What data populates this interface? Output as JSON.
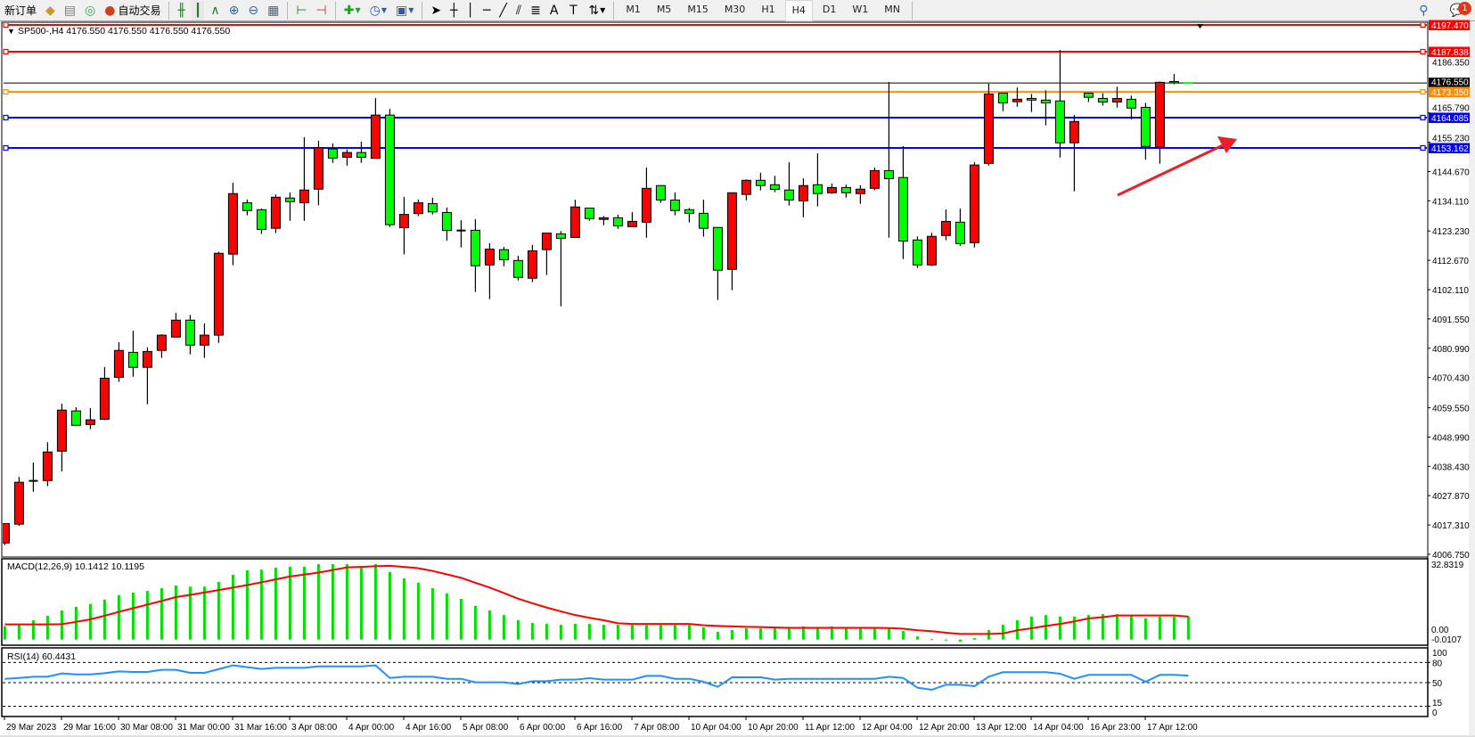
{
  "toolbar": {
    "new_order": "新订单",
    "auto_trading": "自动交易",
    "timeframes": [
      "M1",
      "M5",
      "M15",
      "M30",
      "H1",
      "H4",
      "D1",
      "W1",
      "MN"
    ],
    "active_timeframe": "H4",
    "notification_count": "1",
    "icons": [
      "market-watch-icon",
      "navigator-icon",
      "signals-icon",
      "auto-trading-icon",
      "bar-chart-icon",
      "candlestick-icon",
      "line-chart-icon",
      "zoom-in-icon",
      "zoom-out-icon",
      "tile-windows-icon",
      "chart-shift-icon",
      "autoscroll-icon",
      "indicators-icon",
      "periods-icon",
      "templates-icon",
      "cursor-icon",
      "crosshair-icon",
      "vertical-line-icon",
      "horizontal-line-icon",
      "trendline-icon",
      "equidistant-channel-icon",
      "fibonacci-icon",
      "text-icon",
      "text-label-icon",
      "arrows-icon",
      "search-icon",
      "chat-icon"
    ]
  },
  "chart": {
    "header": "SP500-,H4  4176.550 4176.550 4176.550 4176.550",
    "colors": {
      "bull": "#ff0000",
      "bear": "#00ff00",
      "outline": "#000000",
      "resistance": "#ff0000",
      "orange_level": "#ff8c00",
      "support": "#0000ff",
      "arrow": "#e8202a"
    },
    "levels": [
      {
        "price": 4197.47,
        "label": "4197.470",
        "color": "#ff0000"
      },
      {
        "price": 4187.838,
        "label": "4187.838",
        "color": "#ff0000"
      },
      {
        "price": 4173.35,
        "label": "4173.350",
        "color": "#ff8c00"
      },
      {
        "price": 4164.085,
        "label": "4164.085",
        "color": "#0000ff"
      },
      {
        "price": 4153.162,
        "label": "4153.162",
        "color": "#0000ff"
      }
    ],
    "bid": {
      "price": 4176.55,
      "label": "4176.550"
    },
    "price_axis": [
      "4186.350",
      "4165.790",
      "4155.230",
      "4144.670",
      "4134.110",
      "4123.230",
      "4112.670",
      "4102.110",
      "4091.550",
      "4080.990",
      "4070.430",
      "4059.550",
      "4048.990",
      "4038.430",
      "4027.870",
      "4017.310",
      "4006.750"
    ],
    "time_axis": [
      "29 Mar 2023",
      "29 Mar 16:00",
      "30 Mar 08:00",
      "31 Mar 00:00",
      "31 Mar 16:00",
      "3 Apr 08:00",
      "4 Apr 00:00",
      "4 Apr 16:00",
      "5 Apr 08:00",
      "6 Apr 00:00",
      "6 Apr 16:00",
      "7 Apr 08:00",
      "10 Apr 04:00",
      "10 Apr 20:00",
      "11 Apr 12:00",
      "12 Apr 04:00",
      "12 Apr 20:00",
      "13 Apr 12:00",
      "14 Apr 04:00",
      "16 Apr 23:00",
      "17 Apr 12:00"
    ],
    "ohlc": [
      [
        4010.8,
        4017.8,
        4010.0,
        4017.8
      ],
      [
        4017.6,
        4034.6,
        4017.0,
        4032.7
      ],
      [
        4033.2,
        4039.8,
        4029.3,
        4033.2
      ],
      [
        4033.3,
        4047.1,
        4031.3,
        4043.6
      ],
      [
        4043.9,
        4061.0,
        4036.6,
        4058.7
      ],
      [
        4058.4,
        4059.7,
        4053.2,
        4053.2
      ],
      [
        4053.5,
        4059.4,
        4051.8,
        4055.2
      ],
      [
        4055.4,
        4074.2,
        4055.1,
        4070.2
      ],
      [
        4070.5,
        4083.1,
        4068.9,
        4080.2
      ],
      [
        4079.5,
        4087.3,
        4070.7,
        4074.1
      ],
      [
        4074.1,
        4081.3,
        4060.8,
        4079.8
      ],
      [
        4080.2,
        4086.0,
        4077.5,
        4085.7
      ],
      [
        4085.0,
        4093.7,
        4085.0,
        4091.1
      ],
      [
        4091.1,
        4093.0,
        4078.8,
        4082.1
      ],
      [
        4082.1,
        4089.9,
        4077.5,
        4085.7
      ],
      [
        4085.7,
        4115.7,
        4082.9,
        4115.2
      ],
      [
        4114.9,
        4140.6,
        4110.9,
        4136.7
      ],
      [
        4133.4,
        4134.6,
        4128.9,
        4130.6
      ],
      [
        4130.9,
        4131.3,
        4122.2,
        4123.8
      ],
      [
        4124.2,
        4136.4,
        4122.5,
        4135.4
      ],
      [
        4135.1,
        4137.1,
        4126.9,
        4133.8
      ],
      [
        4133.4,
        4157.0,
        4126.9,
        4138.0
      ],
      [
        4138.3,
        4155.8,
        4132.5,
        4153.2
      ],
      [
        4152.8,
        4154.8,
        4147.8,
        4149.5
      ],
      [
        4149.8,
        4152.6,
        4146.8,
        4151.5
      ],
      [
        4151.5,
        4155.4,
        4147.8,
        4149.8
      ],
      [
        4149.4,
        4171.1,
        4149.4,
        4165.0
      ],
      [
        4165.0,
        4167.2,
        4124.7,
        4125.5
      ],
      [
        4124.4,
        4135.5,
        4114.8,
        4129.2
      ],
      [
        4129.5,
        4134.6,
        4128.6,
        4133.4
      ],
      [
        4133.1,
        4135.2,
        4129.2,
        4130.1
      ],
      [
        4129.9,
        4131.7,
        4119.7,
        4123.4
      ],
      [
        4123.4,
        4127.1,
        4117.3,
        4123.4
      ],
      [
        4123.5,
        4127.5,
        4101.3,
        4110.7
      ],
      [
        4111.0,
        4118.8,
        4098.7,
        4116.7
      ],
      [
        4116.5,
        4117.5,
        4110.5,
        4112.9
      ],
      [
        4112.6,
        4114.3,
        4105.4,
        4106.5
      ],
      [
        4106.2,
        4118.2,
        4104.8,
        4116.1
      ],
      [
        4116.5,
        4122.5,
        4107.4,
        4122.5
      ],
      [
        4122.2,
        4123.2,
        4096.1,
        4120.6
      ],
      [
        4120.9,
        4134.5,
        4120.9,
        4131.9
      ],
      [
        4131.5,
        4131.5,
        4126.9,
        4127.7
      ],
      [
        4127.4,
        4128.6,
        4125.3,
        4128.0
      ],
      [
        4128.0,
        4129.1,
        4124.0,
        4125.1
      ],
      [
        4124.8,
        4130.0,
        4124.8,
        4126.7
      ],
      [
        4126.4,
        4146.1,
        4120.8,
        4138.6
      ],
      [
        4139.6,
        4139.6,
        4133.4,
        4134.4
      ],
      [
        4134.4,
        4137.1,
        4128.9,
        4130.6
      ],
      [
        4130.9,
        4131.5,
        4126.3,
        4129.6
      ],
      [
        4129.6,
        4134.5,
        4121.2,
        4124.2
      ],
      [
        4124.5,
        4124.5,
        4098.4,
        4109.1
      ],
      [
        4109.4,
        4137.0,
        4101.9,
        4137.0
      ],
      [
        4136.4,
        4141.8,
        4134.3,
        4141.5
      ],
      [
        4141.5,
        4144.2,
        4137.9,
        4139.6
      ],
      [
        4139.9,
        4143.1,
        4137.2,
        4138.2
      ],
      [
        4138.0,
        4148.0,
        4132.4,
        4134.4
      ],
      [
        4134.1,
        4142.2,
        4128.2,
        4139.6
      ],
      [
        4139.9,
        4151.2,
        4132.1,
        4136.7
      ],
      [
        4137.0,
        4140.3,
        4136.6,
        4138.9
      ],
      [
        4138.9,
        4139.9,
        4135.3,
        4137.0
      ],
      [
        4136.7,
        4139.7,
        4133.0,
        4138.3
      ],
      [
        4138.6,
        4146.1,
        4137.9,
        4145.0
      ],
      [
        4145.0,
        4176.9,
        4120.8,
        4142.1
      ],
      [
        4142.5,
        4153.8,
        4113.1,
        4119.6
      ],
      [
        4120.0,
        4121.3,
        4109.9,
        4111.0
      ],
      [
        4111.0,
        4122.6,
        4110.6,
        4121.3
      ],
      [
        4121.6,
        4131.0,
        4119.9,
        4126.7
      ],
      [
        4126.4,
        4131.3,
        4117.9,
        4118.7
      ],
      [
        4119.0,
        4148.0,
        4117.3,
        4147.0
      ],
      [
        4147.6,
        4176.3,
        4146.8,
        4172.6
      ],
      [
        4172.9,
        4172.9,
        4166.4,
        4169.4
      ],
      [
        4169.8,
        4174.9,
        4168.0,
        4170.7
      ],
      [
        4171.0,
        4172.6,
        4166.1,
        4170.4
      ],
      [
        4170.4,
        4173.9,
        4161.3,
        4169.4
      ],
      [
        4170.1,
        4188.5,
        4149.7,
        4155.0
      ],
      [
        4155.0,
        4165.0,
        4137.5,
        4162.7
      ],
      [
        4172.9,
        4172.9,
        4169.7,
        4171.4
      ],
      [
        4171.0,
        4172.9,
        4168.4,
        4169.7
      ],
      [
        4169.7,
        4175.2,
        4167.7,
        4171.0
      ],
      [
        4170.7,
        4172.0,
        4163.5,
        4167.5
      ],
      [
        4167.8,
        4169.4,
        4148.9,
        4153.7
      ],
      [
        4153.4,
        4177.1,
        4147.5,
        4176.8
      ],
      [
        4177.1,
        4179.8,
        4176.1,
        4176.6
      ],
      [
        4176.55,
        4176.55,
        4176.55,
        4176.55
      ]
    ]
  },
  "macd": {
    "label": "MACD(12,26,9) 10.1412 10.1195",
    "scale_top": "32.8319",
    "scale_bottom": "0.00",
    "scale_bottom2": "-0.0107",
    "max": 32.8319,
    "histogram": [
      5.9,
      6.9,
      8.5,
      10.5,
      12.8,
      14.4,
      15.6,
      17.6,
      19.5,
      20.7,
      21.4,
      22.6,
      23.8,
      23.3,
      23.3,
      25.4,
      28.5,
      30.5,
      30.8,
      31.6,
      32.0,
      32.0,
      33.2,
      33.2,
      33.2,
      32.0,
      33.2,
      29.7,
      26.9,
      25.0,
      22.6,
      20.3,
      17.9,
      14.8,
      12.8,
      10.8,
      8.5,
      7.3,
      6.9,
      6.5,
      6.9,
      6.9,
      6.5,
      6.5,
      6.5,
      6.5,
      6.5,
      6.5,
      6.5,
      5.4,
      3.4,
      4.2,
      5.0,
      5.0,
      5.0,
      5.0,
      5.8,
      5.0,
      5.8,
      5.0,
      5.0,
      5.0,
      5.0,
      3.8,
      1.4,
      0.2,
      -0.2,
      -1.0,
      0.7,
      4.2,
      6.5,
      8.5,
      10.1,
      10.8,
      10.1,
      10.1,
      10.8,
      11.2,
      11.2,
      10.8,
      9.3,
      10.1,
      10.1,
      10.14
    ],
    "signal": [
      6.7,
      6.7,
      6.7,
      6.7,
      6.8,
      7.8,
      8.9,
      10.5,
      12.2,
      13.8,
      15.4,
      17.0,
      18.7,
      19.7,
      20.7,
      21.8,
      22.9,
      24.0,
      25.2,
      26.5,
      27.8,
      28.6,
      29.5,
      30.6,
      31.8,
      32.0,
      32.3,
      32.5,
      32.0,
      31.4,
      30.2,
      28.7,
      27.2,
      25.0,
      22.9,
      20.5,
      18.0,
      16.0,
      14.1,
      12.4,
      10.8,
      9.6,
      8.5,
      7.2,
      6.9,
      6.9,
      6.9,
      6.9,
      6.9,
      6.3,
      6.0,
      5.8,
      5.6,
      5.5,
      5.3,
      5.2,
      5.2,
      5.2,
      5.2,
      5.2,
      5.2,
      5.2,
      5.1,
      4.8,
      4.1,
      3.7,
      3.0,
      2.5,
      2.5,
      2.5,
      2.7,
      4.1,
      5.0,
      6.0,
      6.9,
      8.0,
      9.3,
      9.9,
      10.6,
      10.6,
      10.6,
      10.6,
      10.6,
      10.12
    ],
    "colors": {
      "histogram": "#00e000",
      "signal": "#ff0000"
    }
  },
  "rsi": {
    "label": "RSI(14) 60.4431",
    "levels": [
      {
        "value": 100,
        "label": "100"
      },
      {
        "value": 80,
        "label": "80"
      },
      {
        "value": 50,
        "label": "50"
      },
      {
        "value": 15,
        "label": "15"
      },
      {
        "value": 0,
        "label": "0"
      }
    ],
    "dashed_levels": [
      80,
      50,
      15
    ],
    "values": [
      55.7,
      57,
      58.8,
      58.8,
      63.7,
      62.3,
      62.3,
      64,
      66.7,
      65.9,
      65.9,
      69,
      69,
      64.6,
      64.6,
      70,
      75.6,
      73,
      70.3,
      72,
      72,
      72,
      74.2,
      74.2,
      74.2,
      74.2,
      75.6,
      57,
      58.8,
      58.8,
      58.8,
      55.7,
      55.7,
      50.5,
      50.5,
      50.5,
      47.8,
      52.2,
      52.2,
      54.4,
      54.4,
      56.6,
      54.4,
      54.4,
      54.4,
      60.1,
      60.1,
      55.7,
      55.7,
      51.3,
      43.8,
      57.9,
      57.9,
      57.9,
      54.4,
      55.7,
      55.7,
      55.7,
      55.7,
      55.7,
      55.7,
      55.7,
      58.8,
      57,
      42.5,
      39.4,
      46.9,
      46.9,
      44.7,
      58.8,
      65.5,
      65.5,
      65.5,
      65.5,
      63.3,
      55.7,
      61.5,
      61.5,
      61.5,
      61.5,
      51.3,
      61.5,
      61.5,
      60.44
    ],
    "color": "#1e90ff"
  }
}
